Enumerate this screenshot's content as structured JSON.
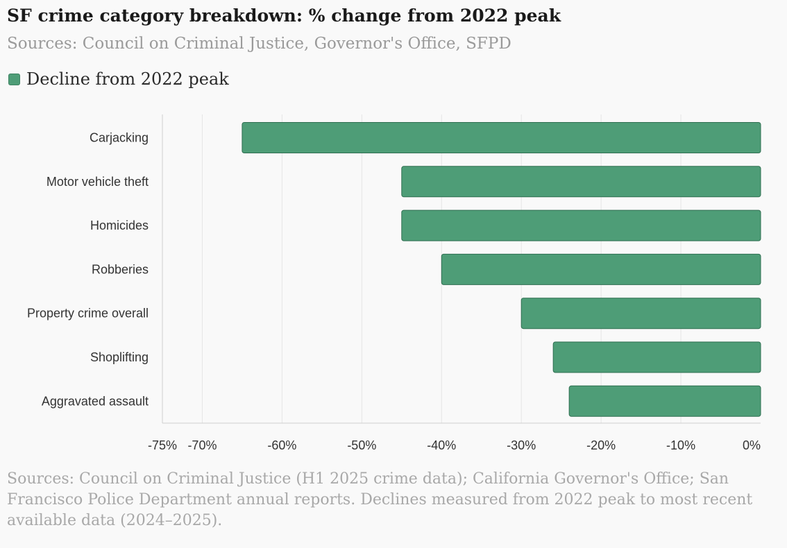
{
  "title": "SF crime category breakdown: % change from 2022 peak",
  "subtitle": "Sources: Council on Criminal Justice, Governor's Office, SFPD",
  "legend": {
    "label": "Decline from 2022 peak",
    "color": "#4e9d77"
  },
  "footer": "Sources: Council on Criminal Justice (H1 2025 crime data); California Governor's Office; San Francisco Police Department annual reports. Declines measured from 2022 peak to most recent available data (2024–2025).",
  "chart_data": {
    "type": "bar",
    "orientation": "horizontal",
    "categories": [
      "Carjacking",
      "Motor vehicle theft",
      "Homicides",
      "Robberies",
      "Property crime overall",
      "Shoplifting",
      "Aggravated assault"
    ],
    "values": [
      -65,
      -45,
      -45,
      -40,
      -30,
      -26,
      -24
    ],
    "xlim": [
      -75,
      0
    ],
    "xticks": [
      -75,
      -70,
      -60,
      -50,
      -40,
      -30,
      -20,
      -10,
      0
    ],
    "xtick_labels": [
      "-75%",
      "-70%",
      "-60%",
      "-50%",
      "-40%",
      "-30%",
      "-20%",
      "-10%",
      "0%"
    ],
    "bar_color": "#4e9d77",
    "grid": true,
    "legend_position": "top-left"
  }
}
